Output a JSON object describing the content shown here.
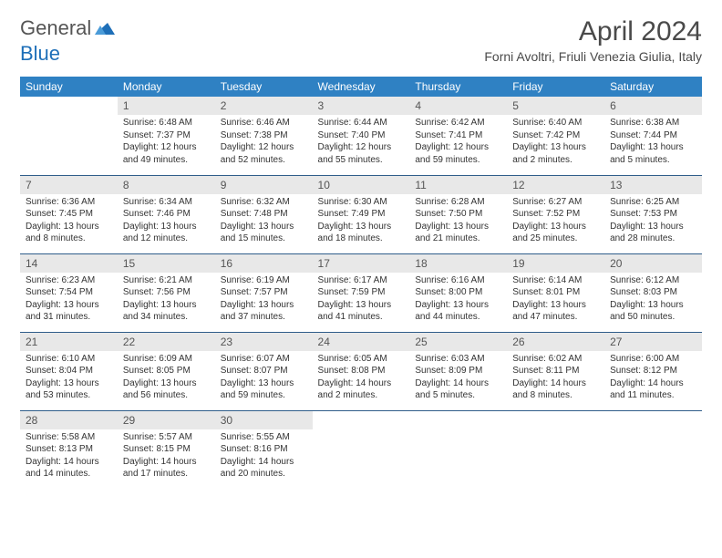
{
  "logo": {
    "text_general": "General",
    "text_blue": "Blue"
  },
  "title": "April 2024",
  "location": "Forni Avoltri, Friuli Venezia Giulia, Italy",
  "colors": {
    "header_bg": "#2f81c3",
    "header_text": "#ffffff",
    "daynum_bg": "#e8e8e8",
    "row_border": "#2f5d8a",
    "logo_blue": "#1e6fb8",
    "text": "#333333"
  },
  "typography": {
    "title_fontsize": 30,
    "location_fontsize": 14,
    "header_fontsize": 12,
    "daynum_fontsize": 12,
    "body_fontsize": 10
  },
  "day_headers": [
    "Sunday",
    "Monday",
    "Tuesday",
    "Wednesday",
    "Thursday",
    "Friday",
    "Saturday"
  ],
  "weeks": [
    [
      null,
      {
        "n": "1",
        "sunrise": "6:48 AM",
        "sunset": "7:37 PM",
        "daylight": "12 hours and 49 minutes."
      },
      {
        "n": "2",
        "sunrise": "6:46 AM",
        "sunset": "7:38 PM",
        "daylight": "12 hours and 52 minutes."
      },
      {
        "n": "3",
        "sunrise": "6:44 AM",
        "sunset": "7:40 PM",
        "daylight": "12 hours and 55 minutes."
      },
      {
        "n": "4",
        "sunrise": "6:42 AM",
        "sunset": "7:41 PM",
        "daylight": "12 hours and 59 minutes."
      },
      {
        "n": "5",
        "sunrise": "6:40 AM",
        "sunset": "7:42 PM",
        "daylight": "13 hours and 2 minutes."
      },
      {
        "n": "6",
        "sunrise": "6:38 AM",
        "sunset": "7:44 PM",
        "daylight": "13 hours and 5 minutes."
      }
    ],
    [
      {
        "n": "7",
        "sunrise": "6:36 AM",
        "sunset": "7:45 PM",
        "daylight": "13 hours and 8 minutes."
      },
      {
        "n": "8",
        "sunrise": "6:34 AM",
        "sunset": "7:46 PM",
        "daylight": "13 hours and 12 minutes."
      },
      {
        "n": "9",
        "sunrise": "6:32 AM",
        "sunset": "7:48 PM",
        "daylight": "13 hours and 15 minutes."
      },
      {
        "n": "10",
        "sunrise": "6:30 AM",
        "sunset": "7:49 PM",
        "daylight": "13 hours and 18 minutes."
      },
      {
        "n": "11",
        "sunrise": "6:28 AM",
        "sunset": "7:50 PM",
        "daylight": "13 hours and 21 minutes."
      },
      {
        "n": "12",
        "sunrise": "6:27 AM",
        "sunset": "7:52 PM",
        "daylight": "13 hours and 25 minutes."
      },
      {
        "n": "13",
        "sunrise": "6:25 AM",
        "sunset": "7:53 PM",
        "daylight": "13 hours and 28 minutes."
      }
    ],
    [
      {
        "n": "14",
        "sunrise": "6:23 AM",
        "sunset": "7:54 PM",
        "daylight": "13 hours and 31 minutes."
      },
      {
        "n": "15",
        "sunrise": "6:21 AM",
        "sunset": "7:56 PM",
        "daylight": "13 hours and 34 minutes."
      },
      {
        "n": "16",
        "sunrise": "6:19 AM",
        "sunset": "7:57 PM",
        "daylight": "13 hours and 37 minutes."
      },
      {
        "n": "17",
        "sunrise": "6:17 AM",
        "sunset": "7:59 PM",
        "daylight": "13 hours and 41 minutes."
      },
      {
        "n": "18",
        "sunrise": "6:16 AM",
        "sunset": "8:00 PM",
        "daylight": "13 hours and 44 minutes."
      },
      {
        "n": "19",
        "sunrise": "6:14 AM",
        "sunset": "8:01 PM",
        "daylight": "13 hours and 47 minutes."
      },
      {
        "n": "20",
        "sunrise": "6:12 AM",
        "sunset": "8:03 PM",
        "daylight": "13 hours and 50 minutes."
      }
    ],
    [
      {
        "n": "21",
        "sunrise": "6:10 AM",
        "sunset": "8:04 PM",
        "daylight": "13 hours and 53 minutes."
      },
      {
        "n": "22",
        "sunrise": "6:09 AM",
        "sunset": "8:05 PM",
        "daylight": "13 hours and 56 minutes."
      },
      {
        "n": "23",
        "sunrise": "6:07 AM",
        "sunset": "8:07 PM",
        "daylight": "13 hours and 59 minutes."
      },
      {
        "n": "24",
        "sunrise": "6:05 AM",
        "sunset": "8:08 PM",
        "daylight": "14 hours and 2 minutes."
      },
      {
        "n": "25",
        "sunrise": "6:03 AM",
        "sunset": "8:09 PM",
        "daylight": "14 hours and 5 minutes."
      },
      {
        "n": "26",
        "sunrise": "6:02 AM",
        "sunset": "8:11 PM",
        "daylight": "14 hours and 8 minutes."
      },
      {
        "n": "27",
        "sunrise": "6:00 AM",
        "sunset": "8:12 PM",
        "daylight": "14 hours and 11 minutes."
      }
    ],
    [
      {
        "n": "28",
        "sunrise": "5:58 AM",
        "sunset": "8:13 PM",
        "daylight": "14 hours and 14 minutes."
      },
      {
        "n": "29",
        "sunrise": "5:57 AM",
        "sunset": "8:15 PM",
        "daylight": "14 hours and 17 minutes."
      },
      {
        "n": "30",
        "sunrise": "5:55 AM",
        "sunset": "8:16 PM",
        "daylight": "14 hours and 20 minutes."
      },
      null,
      null,
      null,
      null
    ]
  ],
  "labels": {
    "sunrise": "Sunrise:",
    "sunset": "Sunset:",
    "daylight": "Daylight:"
  }
}
